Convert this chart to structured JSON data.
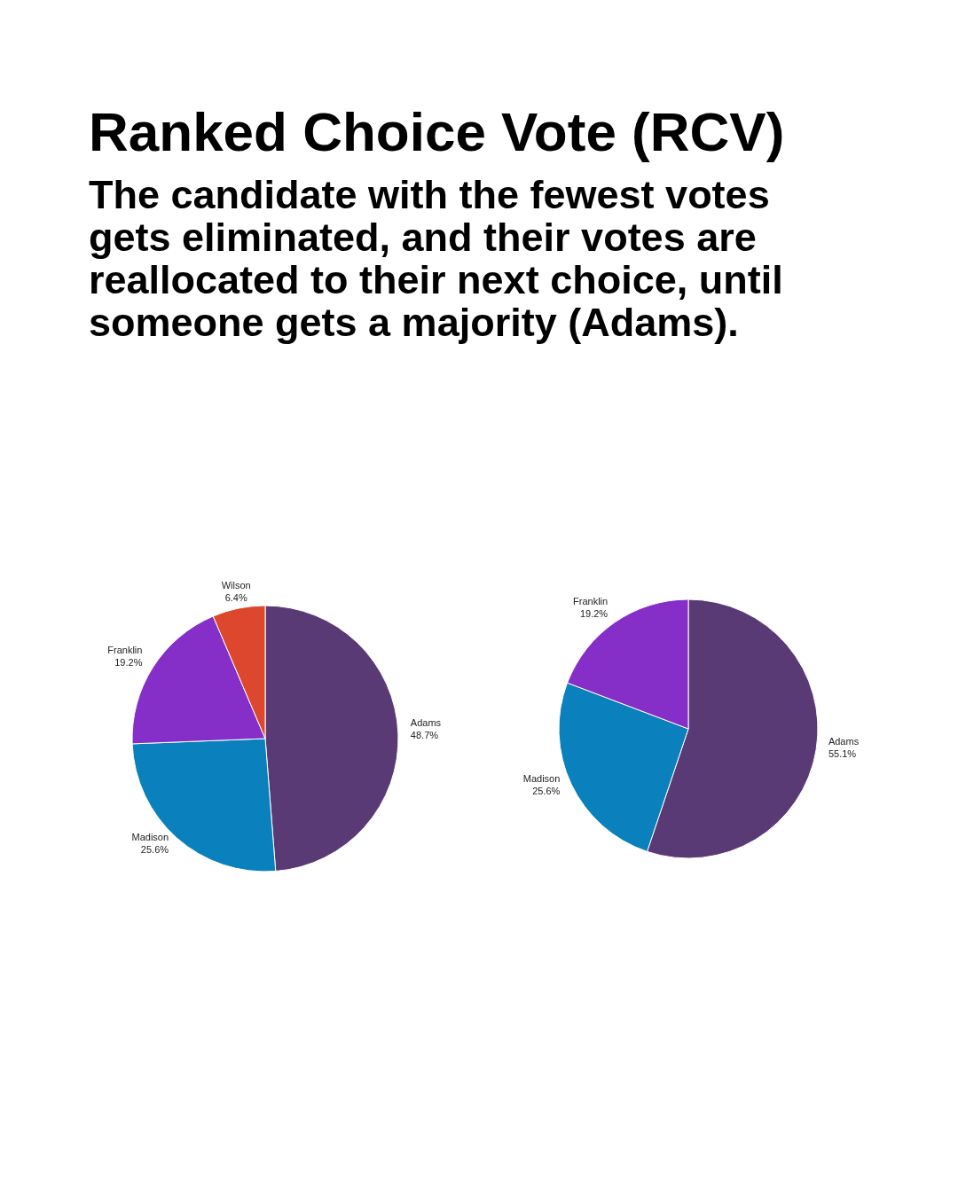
{
  "chart_data": [
    {
      "type": "pie",
      "title": "Ranked Choice Vote (RCV)",
      "subtitle": "The candidate with the fewest votes gets eliminated, and their votes are reallocated to their next choice, until someone gets a majority (Adams).",
      "categories": [
        "Adams",
        "Madison",
        "Franklin",
        "Wilson"
      ],
      "values": [
        48.7,
        25.6,
        19.2,
        6.4
      ],
      "colors": [
        "#5a3a75",
        "#0a80bd",
        "#852fc8",
        "#dc472e"
      ],
      "value_labels": [
        "48.7%",
        "25.6%",
        "19.2%",
        "6.4%"
      ]
    },
    {
      "type": "pie",
      "categories": [
        "Adams",
        "Madison",
        "Franklin"
      ],
      "values": [
        55.1,
        25.6,
        19.2
      ],
      "colors": [
        "#5a3a75",
        "#0a80bd",
        "#852fc8"
      ],
      "value_labels": [
        "55.1%",
        "25.6%",
        "19.2%"
      ]
    }
  ]
}
